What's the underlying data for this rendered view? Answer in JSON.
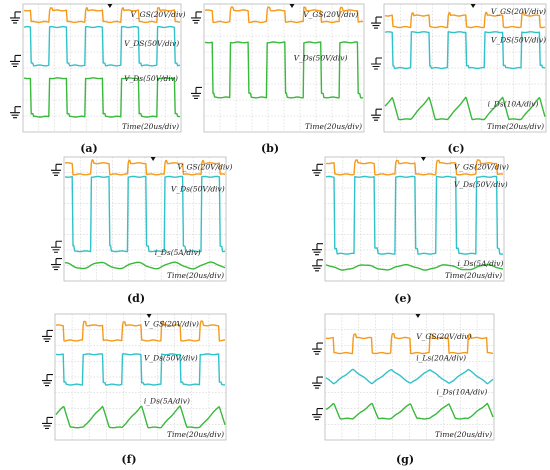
{
  "chart_data": [
    {
      "type": "line",
      "panel": "(a)",
      "series": [
        {
          "name": "V_GS(20V/div)",
          "color": "#f59a1a"
        },
        {
          "name": "V_DS(50V/div)",
          "color": "#31c2c9"
        },
        {
          "name": "V_Ds(50V/div)",
          "color": "#39b93a"
        }
      ],
      "xlabel": "Time(20us/div)",
      "grid": true
    },
    {
      "type": "line",
      "panel": "(b)",
      "series": [
        {
          "name": "V_GS(20V/div)",
          "color": "#f59a1a"
        },
        {
          "name": "V_Ds(50V/div)",
          "color": "#39b93a"
        }
      ],
      "xlabel": "Time(20us/div)",
      "grid": true
    },
    {
      "type": "line",
      "panel": "(c)",
      "series": [
        {
          "name": "V_GS(20V/div)",
          "color": "#f59a1a"
        },
        {
          "name": "V_DS(50V/div)",
          "color": "#31c2c9"
        },
        {
          "name": "i_Ds(10A/div)",
          "color": "#39b93a"
        }
      ],
      "xlabel": "Time(20us/div)",
      "grid": true
    },
    {
      "type": "line",
      "panel": "(d)",
      "series": [
        {
          "name": "V_GS(20V/div)",
          "color": "#f59a1a"
        },
        {
          "name": "V_Ds(50V/div)",
          "color": "#31c2c9"
        },
        {
          "name": "i_Ds(5A/div)",
          "color": "#39b93a"
        }
      ],
      "xlabel": "Time(20us/div)",
      "grid": true
    },
    {
      "type": "line",
      "panel": "(e)",
      "series": [
        {
          "name": "V_GS(20V/div)",
          "color": "#f59a1a"
        },
        {
          "name": "V_Ds(50V/div)",
          "color": "#31c2c9"
        },
        {
          "name": "i_Ds(5A/div)",
          "color": "#39b93a"
        }
      ],
      "xlabel": "Time(20us/div)",
      "grid": true
    },
    {
      "type": "line",
      "panel": "(f)",
      "series": [
        {
          "name": "V_GS(20V/div)",
          "color": "#f59a1a"
        },
        {
          "name": "V_Ds(50V/div)",
          "color": "#31c2c9"
        },
        {
          "name": "i_Ds(5A/div)",
          "color": "#39b93a"
        }
      ],
      "xlabel": "Time(20us/div)",
      "grid": true
    },
    {
      "type": "line",
      "panel": "(g)",
      "series": [
        {
          "name": "V_GS(20V/div)",
          "color": "#f59a1a"
        },
        {
          "name": "i_Ls(20A/div)",
          "color": "#31c2c9"
        },
        {
          "name": "i_Ds(10A/div)",
          "color": "#39b93a"
        }
      ],
      "xlabel": "Time(20us/div)",
      "grid": true
    }
  ]
}
